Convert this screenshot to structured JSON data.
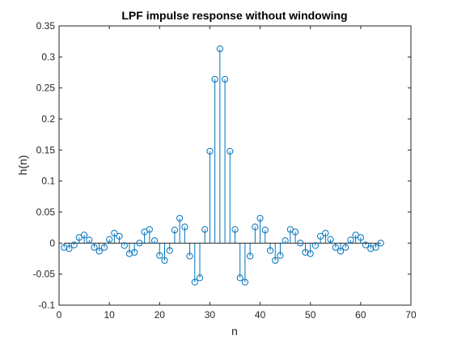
{
  "chart_data": {
    "type": "stem",
    "title": "LPF impulse response without windowing",
    "xlabel": "n",
    "ylabel": "h(n)",
    "xlim": [
      0,
      70
    ],
    "ylim": [
      -0.1,
      0.35
    ],
    "xticks": [
      0,
      10,
      20,
      30,
      40,
      50,
      60,
      70
    ],
    "xtick_labels": [
      "0",
      "10",
      "20",
      "30",
      "40",
      "50",
      "60",
      "70"
    ],
    "yticks": [
      -0.1,
      -0.05,
      0,
      0.05,
      0.1,
      0.15,
      0.2,
      0.25,
      0.3,
      0.35
    ],
    "ytick_labels": [
      "-0.1",
      "-0.05",
      "0",
      "0.05",
      "0.1",
      "0.15",
      "0.2",
      "0.25",
      "0.3",
      "0.35"
    ],
    "grid": false,
    "series": [
      {
        "color": "#0072BD",
        "marker": "circle",
        "x": [
          1,
          2,
          3,
          4,
          5,
          6,
          7,
          8,
          9,
          10,
          11,
          12,
          13,
          14,
          15,
          16,
          17,
          18,
          19,
          20,
          21,
          22,
          23,
          24,
          25,
          26,
          27,
          28,
          29,
          30,
          31,
          32,
          33,
          34,
          35,
          36,
          37,
          38,
          39,
          40,
          41,
          42,
          43,
          44,
          45,
          46,
          47,
          48,
          49,
          50,
          51,
          52,
          53,
          54,
          55,
          56,
          57,
          58,
          59,
          60,
          61,
          62,
          63,
          64
        ],
        "values": [
          -0.007,
          -0.009,
          -0.003,
          0.009,
          0.013,
          0.005,
          -0.007,
          -0.013,
          -0.007,
          0.006,
          0.016,
          0.011,
          -0.004,
          -0.017,
          -0.015,
          0.0,
          0.018,
          0.022,
          0.004,
          -0.02,
          -0.028,
          -0.012,
          0.021,
          0.04,
          0.026,
          -0.021,
          -0.063,
          -0.056,
          0.022,
          0.148,
          0.264,
          0.313,
          0.264,
          0.148,
          0.022,
          -0.056,
          -0.063,
          -0.021,
          0.026,
          0.04,
          0.021,
          -0.012,
          -0.028,
          -0.02,
          0.004,
          0.022,
          0.018,
          0.0,
          -0.015,
          -0.017,
          -0.004,
          0.011,
          0.016,
          0.006,
          -0.007,
          -0.013,
          -0.007,
          0.005,
          0.013,
          0.009,
          -0.003,
          -0.009,
          -0.007,
          0.0
        ]
      }
    ]
  }
}
